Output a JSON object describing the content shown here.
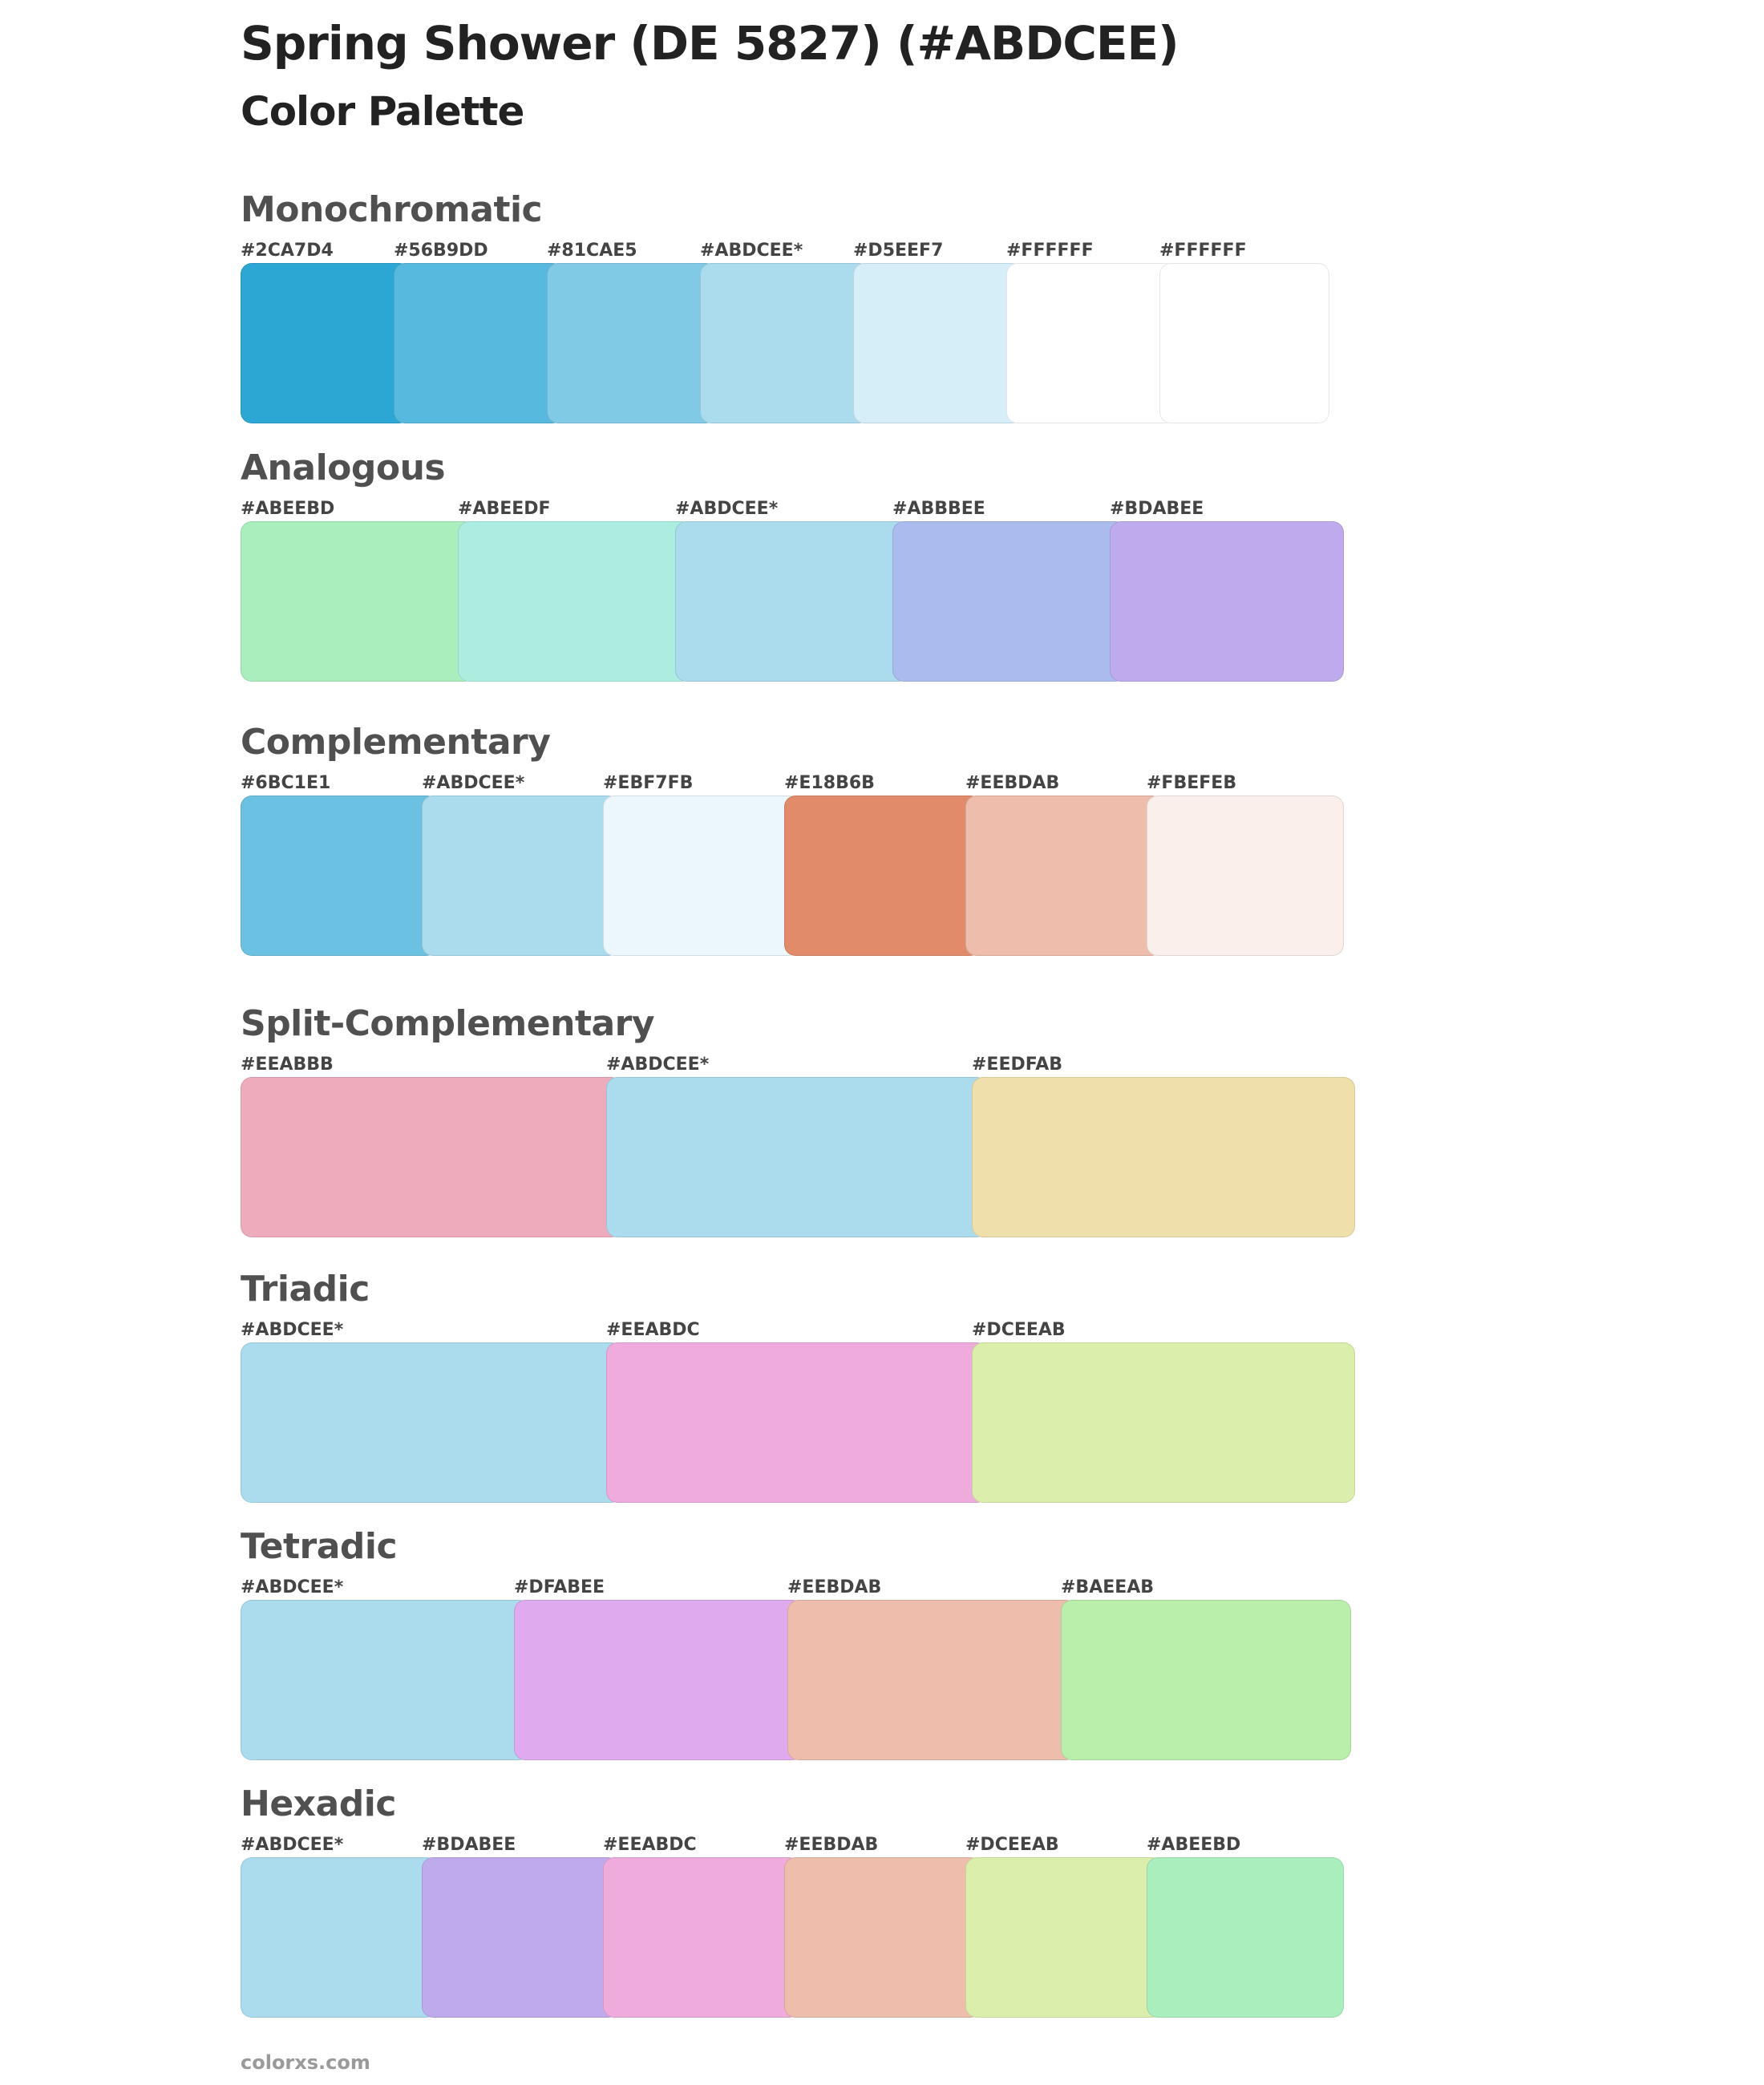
{
  "title": "Spring Shower (DE 5827) (#ABDCEE)",
  "subtitle": "Color Palette",
  "sections": [
    {
      "name": "Monochromatic",
      "swatches": [
        {
          "label": "#2CA7D4",
          "color": "#2CA7D4"
        },
        {
          "label": "#56B9DD",
          "color": "#56B9DD"
        },
        {
          "label": "#81CAE5",
          "color": "#81CAE5"
        },
        {
          "label": "#ABDCEE*",
          "color": "#ABDCEE"
        },
        {
          "label": "#D5EEF7",
          "color": "#D5EEF7"
        },
        {
          "label": "#FFFFFF",
          "color": "#FFFFFF"
        },
        {
          "label": "#FFFFFF",
          "color": "#FFFFFF"
        }
      ]
    },
    {
      "name": "Analogous",
      "swatches": [
        {
          "label": "#ABEEBD",
          "color": "#ABEEBD"
        },
        {
          "label": "#ABEEDF",
          "color": "#ABEEDF"
        },
        {
          "label": "#ABDCEE*",
          "color": "#ABDCEE"
        },
        {
          "label": "#ABBBEE",
          "color": "#ABBBEE"
        },
        {
          "label": "#BDABEE",
          "color": "#BDABEE"
        }
      ]
    },
    {
      "name": "Complementary",
      "swatches": [
        {
          "label": "#6BC1E1",
          "color": "#6BC1E1"
        },
        {
          "label": "#ABDCEE*",
          "color": "#ABDCEE"
        },
        {
          "label": "#EBF7FB",
          "color": "#EBF7FB"
        },
        {
          "label": "#E18B6B",
          "color": "#E18B6B"
        },
        {
          "label": "#EEBDAB",
          "color": "#EEBDAB"
        },
        {
          "label": "#FBEFEB",
          "color": "#FBEFEB"
        }
      ]
    },
    {
      "name": "Split-Complementary",
      "swatches": [
        {
          "label": "#EEABBB",
          "color": "#EEABBB"
        },
        {
          "label": "#ABDCEE*",
          "color": "#ABDCEE"
        },
        {
          "label": "#EEDFAB",
          "color": "#EEDFAB"
        }
      ]
    },
    {
      "name": "Triadic",
      "swatches": [
        {
          "label": "#ABDCEE*",
          "color": "#ABDCEE"
        },
        {
          "label": "#EEABDC",
          "color": "#EEABDC"
        },
        {
          "label": "#DCEEAB",
          "color": "#DCEEAB"
        }
      ]
    },
    {
      "name": "Tetradic",
      "swatches": [
        {
          "label": "#ABDCEE*",
          "color": "#ABDCEE"
        },
        {
          "label": "#DFABEE",
          "color": "#DFABEE"
        },
        {
          "label": "#EEBDAB",
          "color": "#EEBDAB"
        },
        {
          "label": "#BAEEAB",
          "color": "#BAEEAB"
        }
      ]
    },
    {
      "name": "Hexadic",
      "swatches": [
        {
          "label": "#ABDCEE*",
          "color": "#ABDCEE"
        },
        {
          "label": "#BDABEE",
          "color": "#BDABEE"
        },
        {
          "label": "#EEABDC",
          "color": "#EEABDC"
        },
        {
          "label": "#EEBDAB",
          "color": "#EEBDAB"
        },
        {
          "label": "#DCEEAB",
          "color": "#DCEEAB"
        },
        {
          "label": "#ABEEBD",
          "color": "#ABEEBD"
        }
      ]
    }
  ],
  "footer": "colorxs.com"
}
